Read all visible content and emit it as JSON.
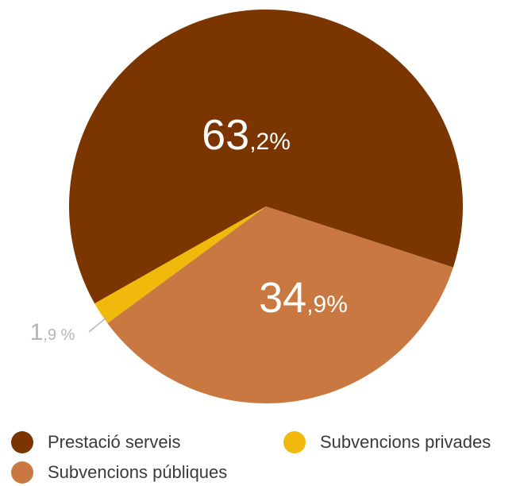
{
  "chart_data": {
    "type": "pie",
    "slices": [
      {
        "name": "Prestació serveis",
        "value": 63.2,
        "label_main": "63",
        "label_rest": ",2%",
        "color": "#7a3500",
        "label_color": "#ffffff"
      },
      {
        "name": "Subvencions públiques",
        "value": 34.9,
        "label_main": "34",
        "label_rest": ",9%",
        "color": "#c97841",
        "label_color": "#ffffff"
      },
      {
        "name": "Subvencions privades",
        "value": 1.9,
        "label_main": "1",
        "label_rest": ",9 %",
        "color": "#f2b90d",
        "label_color": "#b5b5b5"
      }
    ],
    "legend": [
      {
        "label": "Prestació serveis",
        "color": "#7a3500"
      },
      {
        "label": "Subvencions privades",
        "color": "#f2b90d"
      },
      {
        "label": "Subvencions públiques",
        "color": "#c97841"
      }
    ],
    "legend_position": "bottom"
  }
}
